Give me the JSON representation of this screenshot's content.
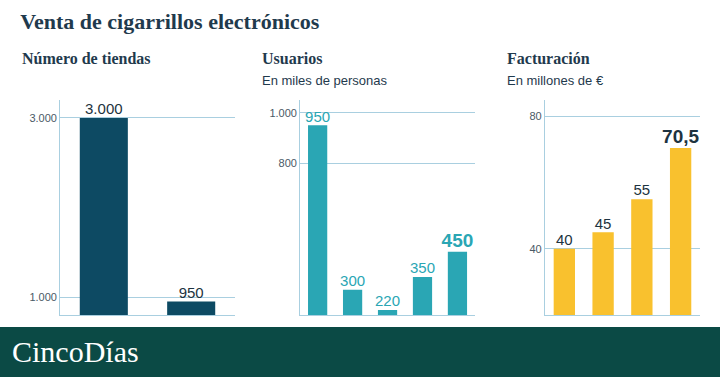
{
  "header": {
    "title": "Venta de cigarrillos electrónicos"
  },
  "footer": {
    "logo": "CincoDías"
  },
  "chart_data": [
    {
      "type": "bar",
      "title": "Número de tiendas",
      "categories": [
        null,
        null
      ],
      "values": [
        3000,
        950
      ],
      "value_labels": [
        "3.000",
        "950"
      ],
      "color": "#0d4a63",
      "ylim": [
        800,
        3200
      ],
      "yticks": [
        {
          "value": 1000,
          "label": "1.000"
        },
        {
          "value": 3000,
          "label": "3.000"
        }
      ],
      "grid": true,
      "data_labels": true,
      "tick_labels": "y"
    },
    {
      "type": "bar",
      "title": "Usuarios",
      "subtitle": "En miles de personas",
      "categories": [
        null,
        null,
        null,
        null,
        null
      ],
      "values": [
        950,
        300,
        220,
        350,
        450
      ],
      "color": "#2aa6b4",
      "ylim": [
        200,
        1050
      ],
      "yticks": [
        800,
        {
          "value": 1000,
          "label": "1.000"
        }
      ],
      "grid": true,
      "data_labels": true,
      "tick_labels": "y"
    },
    {
      "type": "bar",
      "title": "Facturación",
      "subtitle": "En millones de €",
      "categories": [
        null,
        null,
        null,
        null
      ],
      "values": [
        40,
        45,
        55,
        70.5
      ],
      "value_labels": [
        "40",
        "45",
        "55",
        "70,5"
      ],
      "color": "#f9c12e",
      "ylim": [
        20,
        85
      ],
      "yticks": [
        40,
        80
      ],
      "grid": true,
      "data_labels": true,
      "tick_labels": "y"
    }
  ]
}
